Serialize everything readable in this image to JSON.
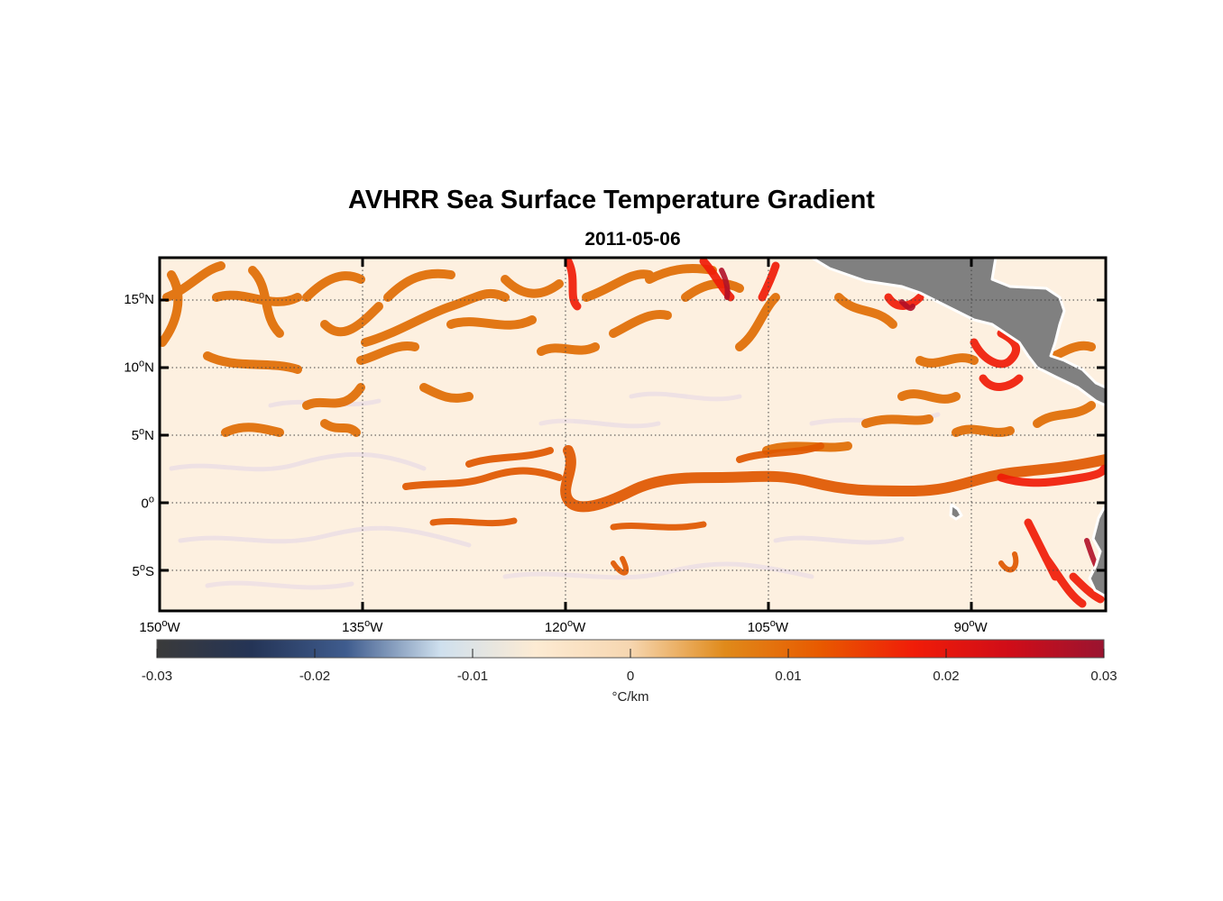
{
  "title": "AVHRR Sea Surface Temperature Gradient",
  "subtitle": "2011-05-06",
  "map": {
    "projection": "equirectangular",
    "lon_range": [
      -150,
      -80
    ],
    "lat_range": [
      -8,
      18
    ],
    "grid": true,
    "lon_ticks": [
      {
        "value": -150,
        "deg": "150",
        "hem": "W"
      },
      {
        "value": -135,
        "deg": "135",
        "hem": "W"
      },
      {
        "value": -120,
        "deg": "120",
        "hem": "W"
      },
      {
        "value": -105,
        "deg": "105",
        "hem": "W"
      },
      {
        "value": -90,
        "deg": "90",
        "hem": "W"
      }
    ],
    "lat_ticks": [
      {
        "value": 15,
        "deg": "15",
        "hem": "N"
      },
      {
        "value": 10,
        "deg": "10",
        "hem": "N"
      },
      {
        "value": 5,
        "deg": "5",
        "hem": "N"
      },
      {
        "value": 0,
        "deg": "0",
        "hem": ""
      },
      {
        "value": -5,
        "deg": "5",
        "hem": "S"
      }
    ],
    "land_color": "#808080",
    "background_color": "#fdf0e0"
  },
  "colorbar": {
    "min": -0.03,
    "max": 0.03,
    "ticks": [
      "-0.03",
      "-0.02",
      "-0.01",
      "0",
      "0.01",
      "0.02",
      "0.03"
    ],
    "tick_values": [
      -0.03,
      -0.02,
      -0.01,
      0,
      0.01,
      0.02,
      0.03
    ],
    "unit_label": "°C/km",
    "colors": [
      "#3a3a3a",
      "#243456",
      "#3f5c8e",
      "#cfe0ee",
      "#fdebd3",
      "#f6d6b0",
      "#e08a1a",
      "#e85a00",
      "#f01c08",
      "#d00d18",
      "#9a1430"
    ]
  }
}
